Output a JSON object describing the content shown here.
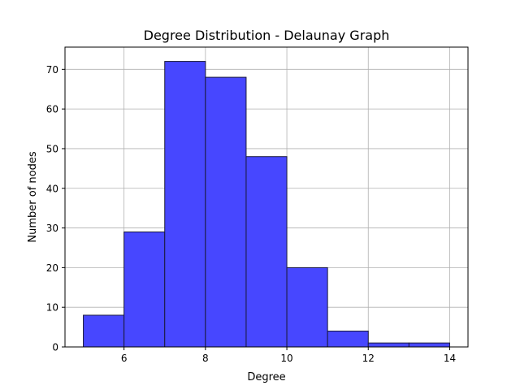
{
  "chart_data": {
    "type": "bar",
    "title": "Degree Distribution - Delaunay Graph",
    "xlabel": "Degree",
    "ylabel": "Number of nodes",
    "bins": [
      {
        "x0": 5,
        "x1": 6,
        "count": 8
      },
      {
        "x0": 6,
        "x1": 7,
        "count": 29
      },
      {
        "x0": 7,
        "x1": 8,
        "count": 72
      },
      {
        "x0": 8,
        "x1": 9,
        "count": 68
      },
      {
        "x0": 9,
        "x1": 10,
        "count": 48
      },
      {
        "x0": 10,
        "x1": 11,
        "count": 20
      },
      {
        "x0": 11,
        "x1": 12,
        "count": 4
      },
      {
        "x0": 12,
        "x1": 13,
        "count": 1
      },
      {
        "x0": 13,
        "x1": 14,
        "count": 1
      }
    ],
    "xlim": [
      4.55,
      14.45
    ],
    "ylim": [
      0,
      75.6
    ],
    "xticks": [
      6,
      8,
      10,
      12,
      14
    ],
    "yticks": [
      0,
      10,
      20,
      30,
      40,
      50,
      60,
      70
    ],
    "grid": true,
    "bar_color": "#4747ff",
    "edge_color": "#1a1a3a",
    "grid_color": "#b0b0b0"
  }
}
